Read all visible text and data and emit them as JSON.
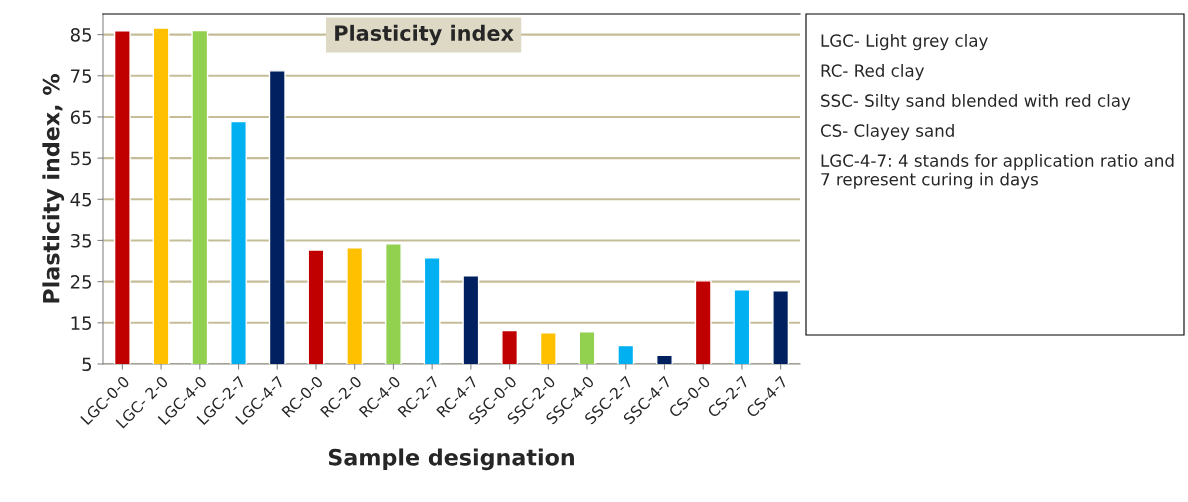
{
  "chart_data": {
    "type": "bar",
    "title": "Plasticity index",
    "xlabel": "Sample designation",
    "ylabel": "Plasticity index, %",
    "categories": [
      "LGC-0-0",
      "LGC- 2-0",
      "LGC-4-0",
      "LGC-2-7",
      "LGC-4-7",
      "RC-0-0",
      "RC-2-0",
      "RC-4-0",
      "RC-2-7",
      "RC-4-7",
      "SSC-0-0",
      "SSC-2-0",
      "SSC-4-0",
      "SSC-2-7",
      "SSC-4-7",
      "CS-0-0",
      "CS-2-7",
      "CS-4-7"
    ],
    "values": [
      85.9,
      86.6,
      86.0,
      63.9,
      76.2,
      32.7,
      33.2,
      34.2,
      30.8,
      26.4,
      13.1,
      12.6,
      12.8,
      9.5,
      7.1,
      25.2,
      23.0,
      22.8
    ],
    "colors": [
      "#c00000",
      "#ffc000",
      "#92d050",
      "#00b0f0",
      "#002060",
      "#c00000",
      "#ffc000",
      "#92d050",
      "#00b0f0",
      "#002060",
      "#c00000",
      "#ffc000",
      "#92d050",
      "#00b0f0",
      "#002060",
      "#c00000",
      "#00b0f0",
      "#002060"
    ],
    "ylim": [
      5,
      90
    ],
    "yticks": [
      5,
      15,
      25,
      35,
      45,
      55,
      65,
      75,
      85
    ],
    "grid": "y",
    "annotations": [
      "LGC- Light grey clay",
      "RC- Red clay",
      "SSC- Silty sand blended with red clay",
      "CS- Clayey sand",
      "LGC-4-7: 4 stands for application ratio and 7 represent curing in days"
    ]
  }
}
